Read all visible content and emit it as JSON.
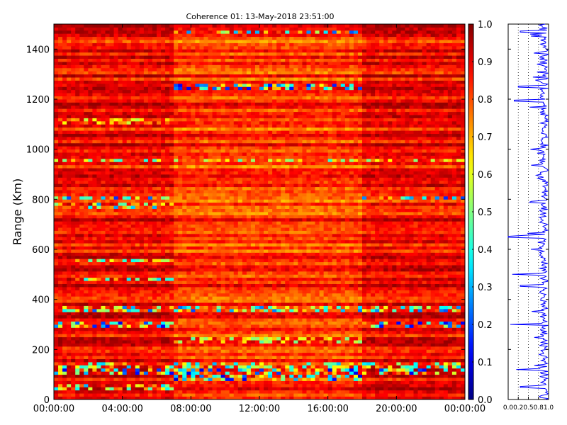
{
  "chart_data": [
    {
      "type": "heatmap",
      "title": "Coherence 01: 13-May-2018 23:51:00",
      "ylabel": "Range (Km)",
      "xlabel": "",
      "xlim": [
        "00:00:00",
        "24:00:00"
      ],
      "ylim": [
        0,
        1500
      ],
      "x_tick_labels": [
        "00:00:00",
        "04:00:00",
        "08:00:00",
        "12:00:00",
        "16:00:00",
        "20:00:00",
        "00:00:00"
      ],
      "x_tick_hours": [
        0,
        4,
        8,
        12,
        16,
        20,
        24
      ],
      "y_ticks": [
        0,
        200,
        400,
        600,
        800,
        1000,
        1200,
        1400
      ],
      "colorbar": {
        "colormap": "jet",
        "range": [
          0.0,
          1.0
        ],
        "ticks": [
          0.0,
          0.1,
          0.2,
          0.3,
          0.4,
          0.5,
          0.6,
          0.7,
          0.8,
          0.9,
          1.0
        ],
        "tick_labels": [
          "0.0",
          "0.1",
          "0.2",
          "0.3",
          "0.4",
          "0.5",
          "0.6",
          "0.7",
          "0.8",
          "0.9",
          "1.0"
        ]
      },
      "time_segments": [
        {
          "start_hour": 0.0,
          "end_hour": 6.9,
          "typical_coherence": 0.88
        },
        {
          "start_hour": 6.9,
          "end_hour": 18.0,
          "typical_coherence": 0.82
        },
        {
          "start_hour": 18.0,
          "end_hour": 24.0,
          "typical_coherence": 0.88
        }
      ],
      "low_coherence_ranges_km": [
        {
          "range_km": 1470,
          "min_coherence": 0.2,
          "hours": [
            6.9,
            18.0
          ]
        },
        {
          "range_km": 1250,
          "min_coherence": 0.1,
          "hours": [
            6.9,
            18.0
          ]
        },
        {
          "range_km": 1110,
          "min_coherence": 0.55,
          "hours": [
            0.0,
            6.9
          ]
        },
        {
          "range_km": 955,
          "min_coherence": 0.4,
          "hours": [
            0.0,
            24.0
          ]
        },
        {
          "range_km": 805,
          "min_coherence": 0.15,
          "hours": [
            0.0,
            6.9
          ]
        },
        {
          "range_km": 805,
          "min_coherence": 0.15,
          "hours": [
            18.0,
            24.0
          ]
        },
        {
          "range_km": 775,
          "min_coherence": 0.25,
          "hours": [
            0.0,
            6.9
          ]
        },
        {
          "range_km": 555,
          "min_coherence": 0.35,
          "hours": [
            0.0,
            6.9
          ]
        },
        {
          "range_km": 480,
          "min_coherence": 0.3,
          "hours": [
            0.0,
            6.9
          ]
        },
        {
          "range_km": 360,
          "min_coherence": 0.2,
          "hours": [
            0.0,
            24.0
          ]
        },
        {
          "range_km": 300,
          "min_coherence": 0.1,
          "hours": [
            0.0,
            6.9
          ]
        },
        {
          "range_km": 300,
          "min_coherence": 0.1,
          "hours": [
            18.0,
            24.0
          ]
        },
        {
          "range_km": 240,
          "min_coherence": 0.45,
          "hours": [
            6.9,
            18.0
          ]
        },
        {
          "range_km": 135,
          "min_coherence": 0.3,
          "hours": [
            0.0,
            24.0
          ]
        },
        {
          "range_km": 115,
          "min_coherence": 0.1,
          "hours": [
            0.0,
            24.0
          ]
        },
        {
          "range_km": 85,
          "min_coherence": 0.05,
          "hours": [
            6.9,
            18.0
          ]
        },
        {
          "range_km": 50,
          "min_coherence": 0.3,
          "hours": [
            0.0,
            6.9
          ]
        }
      ]
    },
    {
      "type": "line",
      "title": "",
      "xlabel": "",
      "ylabel": "",
      "xlim": [
        0.0,
        1.0
      ],
      "ylim": [
        0,
        1500
      ],
      "x_tick_labels": [
        "0.0",
        "0.2",
        "0.5",
        "0.8",
        "1.0"
      ],
      "x_ticks": [
        0.0,
        0.25,
        0.5,
        0.75,
        1.0
      ],
      "grid": true,
      "color": "#0000ff",
      "points": [
        {
          "range_km": 1470,
          "coherence": 0.3
        },
        {
          "range_km": 1250,
          "coherence": 0.25
        },
        {
          "range_km": 1195,
          "coherence": 0.15
        },
        {
          "range_km": 1000,
          "coherence": 0.55
        },
        {
          "range_km": 655,
          "coherence": 0.4
        },
        {
          "range_km": 650,
          "coherence": 0.0
        },
        {
          "range_km": 500,
          "coherence": 0.1
        },
        {
          "range_km": 455,
          "coherence": 0.3
        },
        {
          "range_km": 300,
          "coherence": 0.05
        },
        {
          "range_km": 120,
          "coherence": 0.2
        },
        {
          "range_km": 50,
          "coherence": 0.3
        }
      ],
      "typical_coherence": 0.88
    }
  ]
}
